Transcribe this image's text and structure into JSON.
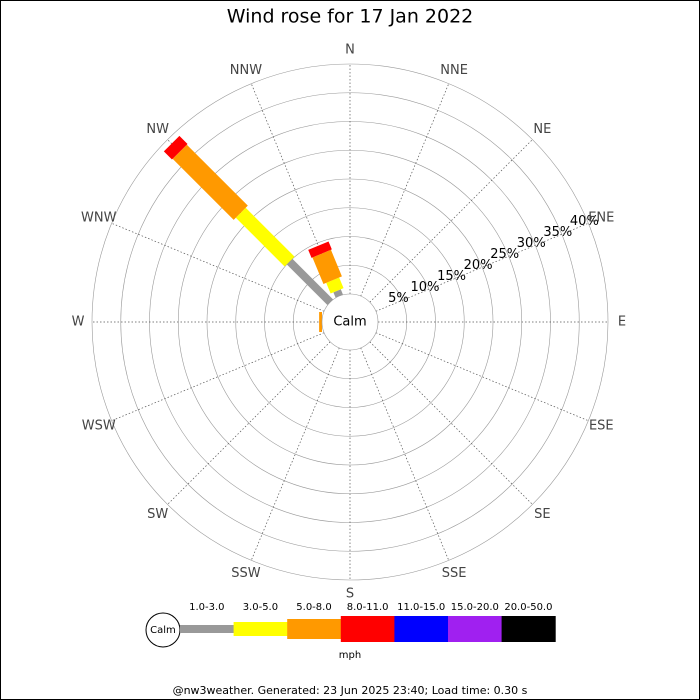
{
  "chart_data": {
    "type": "windrose",
    "title": "Wind rose for 17 Jan 2022",
    "directions": [
      "N",
      "NNE",
      "NE",
      "ENE",
      "E",
      "ESE",
      "SE",
      "SSE",
      "S",
      "SSW",
      "SW",
      "WSW",
      "W",
      "WNW",
      "NW",
      "NNW"
    ],
    "calm_label": "Calm",
    "series": [
      {
        "name": "1.0-3.0",
        "color": "#999999",
        "values": [
          0,
          0,
          0,
          0,
          0,
          0,
          0,
          0,
          0,
          0,
          0,
          0,
          0,
          0,
          10,
          1
        ]
      },
      {
        "name": "3.0-5.0",
        "color": "#ffff00",
        "values": [
          0,
          0,
          0,
          0,
          0,
          0,
          0,
          0,
          0,
          0,
          0,
          0,
          0,
          0,
          12,
          2
        ]
      },
      {
        "name": "5.0-8.0",
        "color": "#ff9900",
        "values": [
          0,
          0,
          0,
          0,
          0,
          0,
          0,
          0,
          0,
          0,
          0,
          0,
          0.5,
          0,
          15,
          5
        ]
      },
      {
        "name": "8.0-11.0",
        "color": "#ff0000",
        "values": [
          0,
          0,
          0,
          0,
          0,
          0,
          0,
          0,
          0,
          0,
          0,
          0,
          0,
          0,
          2,
          1.5
        ]
      },
      {
        "name": "11.0-15.0",
        "color": "#0000ff",
        "values": [
          0,
          0,
          0,
          0,
          0,
          0,
          0,
          0,
          0,
          0,
          0,
          0,
          0,
          0,
          0,
          0
        ]
      },
      {
        "name": "15.0-20.0",
        "color": "#a020f0",
        "values": [
          0,
          0,
          0,
          0,
          0,
          0,
          0,
          0,
          0,
          0,
          0,
          0,
          0,
          0,
          0,
          0
        ]
      },
      {
        "name": "20.0-50.0",
        "color": "#000000",
        "values": [
          0,
          0,
          0,
          0,
          0,
          0,
          0,
          0,
          0,
          0,
          0,
          0,
          0,
          0,
          0,
          0
        ]
      }
    ],
    "unit": "mph",
    "rlim": [
      0,
      40
    ],
    "rticks": [
      {
        "value": 5,
        "label": "5%"
      },
      {
        "value": 10,
        "label": "10%"
      },
      {
        "value": 15,
        "label": "15%"
      },
      {
        "value": 20,
        "label": "20%"
      },
      {
        "value": 25,
        "label": "25%"
      },
      {
        "value": 30,
        "label": "30%"
      },
      {
        "value": 35,
        "label": "35%"
      },
      {
        "value": 40,
        "label": "40%"
      }
    ]
  },
  "footer": "@nw3weather. Generated: 23 Jun 2025 23:40; Load time: 0.30 s"
}
